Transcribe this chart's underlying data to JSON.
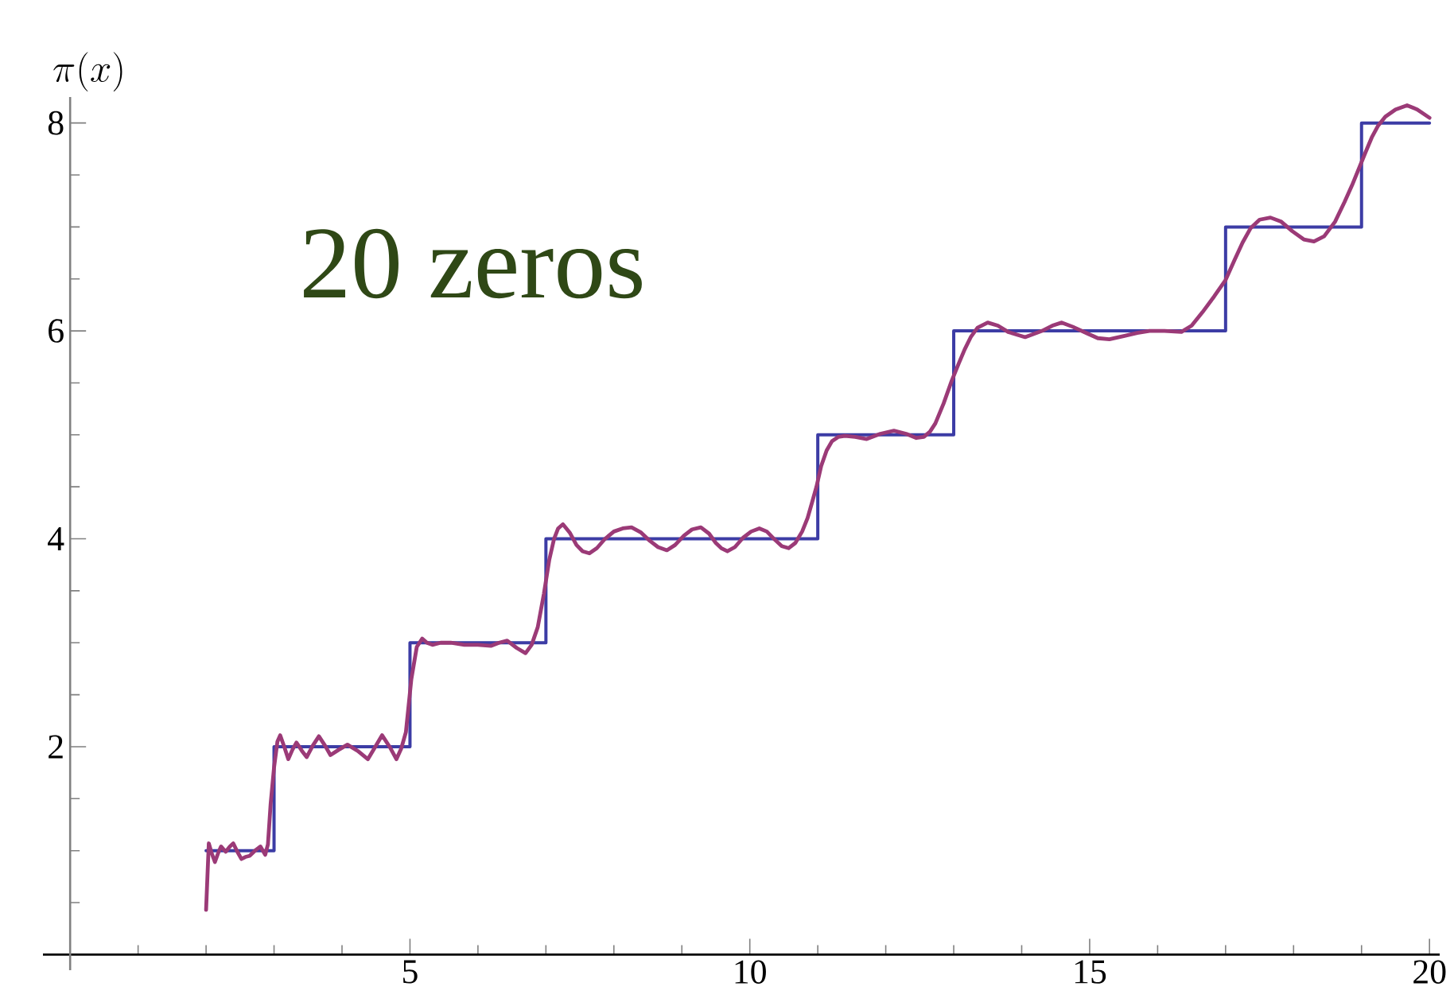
{
  "chart_data": {
    "type": "line",
    "ylabel": "\\pi(x)",
    "annotations": [
      "20 zeros"
    ],
    "xlim": [
      -0.4,
      20.15
    ],
    "ylim": [
      -0.15,
      8.25
    ],
    "xticks": [
      {
        "value": 1,
        "label": null
      },
      {
        "value": 2,
        "label": null
      },
      {
        "value": 3,
        "label": null
      },
      {
        "value": 4,
        "label": null
      },
      5,
      {
        "value": 6,
        "label": null
      },
      {
        "value": 7,
        "label": null
      },
      {
        "value": 8,
        "label": null
      },
      {
        "value": 9,
        "label": null
      },
      10,
      {
        "value": 11,
        "label": null
      },
      {
        "value": 12,
        "label": null
      },
      {
        "value": 13,
        "label": null
      },
      {
        "value": 14,
        "label": null
      },
      15,
      {
        "value": 16,
        "label": null
      },
      {
        "value": 17,
        "label": null
      },
      {
        "value": 18,
        "label": null
      },
      {
        "value": 19,
        "label": null
      },
      20
    ],
    "yticks": [
      {
        "value": 0.5,
        "label": null
      },
      {
        "value": 1,
        "label": null
      },
      {
        "value": 1.5,
        "label": null
      },
      2,
      {
        "value": 2.5,
        "label": null
      },
      {
        "value": 3,
        "label": null
      },
      {
        "value": 3.5,
        "label": null
      },
      4,
      {
        "value": 4.5,
        "label": null
      },
      {
        "value": 5,
        "label": null
      },
      {
        "value": 5.5,
        "label": null
      },
      6,
      {
        "value": 6.5,
        "label": null
      },
      {
        "value": 7,
        "label": null
      },
      {
        "value": 7.5,
        "label": null
      },
      8
    ],
    "series": [
      {
        "type": "step",
        "color": "#3c3ca5",
        "x": [
          2,
          3,
          5,
          7,
          11,
          13,
          17,
          19,
          20
        ],
        "values": [
          1,
          2,
          3,
          4,
          5,
          6,
          7,
          8,
          8
        ]
      },
      {
        "type": "line",
        "color": "#9b3a77",
        "x": [
          2.0,
          2.02,
          2.04,
          2.08,
          2.13,
          2.18,
          2.22,
          2.26,
          2.29,
          2.35,
          2.4,
          2.46,
          2.52,
          2.58,
          2.64,
          2.72,
          2.8,
          2.87,
          2.91,
          2.95,
          3.0,
          3.05,
          3.09,
          3.15,
          3.21,
          3.27,
          3.33,
          3.41,
          3.48,
          3.57,
          3.66,
          3.75,
          3.83,
          3.95,
          4.08,
          4.23,
          4.38,
          4.49,
          4.59,
          4.7,
          4.8,
          4.87,
          4.94,
          5.02,
          5.1,
          5.18,
          5.25,
          5.33,
          5.45,
          5.6,
          5.8,
          6.0,
          6.19,
          6.31,
          6.43,
          6.57,
          6.7,
          6.79,
          6.88,
          6.97,
          7.05,
          7.12,
          7.18,
          7.25,
          7.35,
          7.45,
          7.54,
          7.64,
          7.75,
          7.87,
          8.0,
          8.13,
          8.26,
          8.4,
          8.53,
          8.65,
          8.78,
          8.9,
          9.03,
          9.15,
          9.28,
          9.4,
          9.5,
          9.58,
          9.67,
          9.78,
          9.9,
          10.02,
          10.14,
          10.25,
          10.37,
          10.47,
          10.57,
          10.67,
          10.77,
          10.85,
          10.92,
          10.98,
          11.05,
          11.13,
          11.21,
          11.3,
          11.4,
          11.55,
          11.72,
          11.92,
          12.12,
          12.3,
          12.45,
          12.56,
          12.65,
          12.73,
          12.85,
          12.97,
          13.07,
          13.16,
          13.25,
          13.35,
          13.5,
          13.65,
          13.8,
          14.05,
          14.3,
          14.45,
          14.59,
          14.75,
          14.95,
          15.12,
          15.29,
          15.5,
          15.7,
          15.88,
          16.1,
          16.35,
          16.5,
          16.66,
          16.83,
          17.0,
          17.13,
          17.25,
          17.37,
          17.5,
          17.66,
          17.82,
          17.98,
          18.15,
          18.3,
          18.45,
          18.61,
          18.75,
          18.86,
          18.96,
          19.06,
          19.15,
          19.24,
          19.35,
          19.5,
          19.67,
          19.82,
          20.0
        ],
        "values": [
          0.43,
          0.75,
          1.07,
          0.98,
          0.89,
          0.98,
          1.04,
          1.01,
          0.99,
          1.04,
          1.07,
          0.99,
          0.92,
          0.94,
          0.95,
          1.0,
          1.04,
          0.96,
          1.06,
          1.45,
          1.8,
          2.05,
          2.11,
          2.0,
          1.88,
          1.97,
          2.04,
          1.96,
          1.9,
          2.01,
          2.1,
          2.01,
          1.92,
          1.97,
          2.02,
          1.96,
          1.88,
          2.0,
          2.11,
          2.0,
          1.88,
          1.98,
          2.14,
          2.65,
          2.96,
          3.04,
          3.0,
          2.98,
          3.0,
          3.0,
          2.98,
          2.98,
          2.97,
          3.0,
          3.02,
          2.95,
          2.9,
          2.98,
          3.15,
          3.47,
          3.8,
          4.0,
          4.1,
          4.14,
          4.06,
          3.94,
          3.88,
          3.86,
          3.91,
          4.0,
          4.07,
          4.1,
          4.11,
          4.06,
          3.98,
          3.92,
          3.89,
          3.94,
          4.03,
          4.09,
          4.11,
          4.05,
          3.96,
          3.91,
          3.88,
          3.92,
          4.01,
          4.07,
          4.1,
          4.07,
          3.99,
          3.93,
          3.91,
          3.96,
          4.07,
          4.2,
          4.36,
          4.5,
          4.7,
          4.85,
          4.94,
          4.98,
          4.99,
          4.98,
          4.96,
          5.01,
          5.04,
          5.01,
          4.97,
          4.98,
          5.03,
          5.11,
          5.3,
          5.52,
          5.68,
          5.82,
          5.94,
          6.03,
          6.08,
          6.05,
          5.99,
          5.94,
          6.0,
          6.05,
          6.08,
          6.04,
          5.98,
          5.93,
          5.92,
          5.95,
          5.98,
          6.0,
          6.0,
          5.99,
          6.05,
          6.18,
          6.33,
          6.49,
          6.68,
          6.85,
          6.99,
          7.07,
          7.09,
          7.05,
          6.96,
          6.88,
          6.86,
          6.91,
          7.05,
          7.24,
          7.4,
          7.56,
          7.72,
          7.86,
          7.97,
          8.06,
          8.13,
          8.17,
          8.13,
          8.05
        ]
      }
    ]
  }
}
